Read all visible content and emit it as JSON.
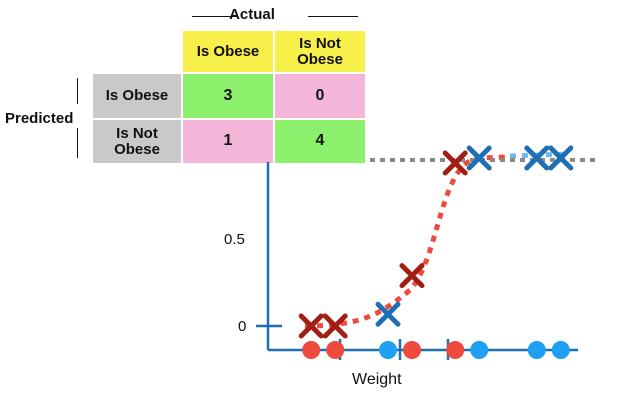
{
  "confusion_matrix": {
    "actual_label": "Actual",
    "predicted_label": "Predicted",
    "col_headers": [
      "Is Obese",
      "Is Not Obese"
    ],
    "row_headers": [
      "Is Obese",
      "Is Not Obese"
    ],
    "cells": [
      [
        "3",
        "0"
      ],
      [
        "1",
        "4"
      ]
    ]
  },
  "chart_data": {
    "type": "scatter",
    "xlabel": "Weight",
    "y_ticks": [
      "0",
      "0.5"
    ],
    "ylim": [
      0,
      1
    ],
    "series": [
      {
        "marker": "x",
        "color": "#a21d12",
        "points": [
          [
            1.3,
            0
          ],
          [
            2.3,
            0
          ],
          [
            5.5,
            0.3
          ],
          [
            7.3,
            0.97
          ]
        ]
      },
      {
        "marker": "x",
        "color": "#1f6fb5",
        "points": [
          [
            4.5,
            0.07
          ],
          [
            8.3,
            1.0
          ],
          [
            10.7,
            1.0
          ],
          [
            11.7,
            1.0
          ]
        ]
      }
    ],
    "dots_red": [
      1.3,
      2.3,
      5.5,
      7.3
    ],
    "dots_blue": [
      4.5,
      8.3,
      10.7,
      11.7
    ],
    "threshold_ticks": [
      2.5,
      5.0,
      7.0
    ],
    "colors": {
      "curve": "#ef4a3c",
      "axis": "#1f6fb5",
      "dashed_top": "#8a8a8a",
      "dot_red": "#ef4a3c",
      "dot_blue": "#1e9ff2"
    }
  }
}
